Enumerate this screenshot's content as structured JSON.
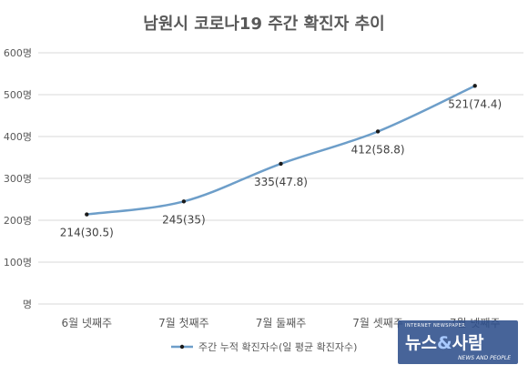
{
  "chart_data": {
    "type": "line",
    "title": "남원시 코로나19 주간 확진자 추이",
    "categories": [
      "6월 넷째주",
      "7월 첫째주",
      "7월 둘째주",
      "7월 셋째주",
      "7월 넷째주"
    ],
    "series": [
      {
        "name": "주간 누적 확진자수(일 평균 확진자수)",
        "values": [
          214,
          245,
          335,
          412,
          521
        ],
        "labels": [
          "214(30.5)",
          "245(35)",
          "335(47.8)",
          "412(58.8)",
          "521(74.4)"
        ],
        "color": "#6d9ec9"
      }
    ],
    "yticks": [
      "600명",
      "500명",
      "400명",
      "300명",
      "200명",
      "100명",
      "명"
    ],
    "ylim": [
      0,
      600
    ],
    "grid": true,
    "legend": "bottom"
  },
  "watermark": {
    "top": "INTERNET NEWSPAPER",
    "main_a": "뉴스",
    "amp": "&",
    "main_b": "사람",
    "sub": "NEWS AND PEOPLE"
  }
}
